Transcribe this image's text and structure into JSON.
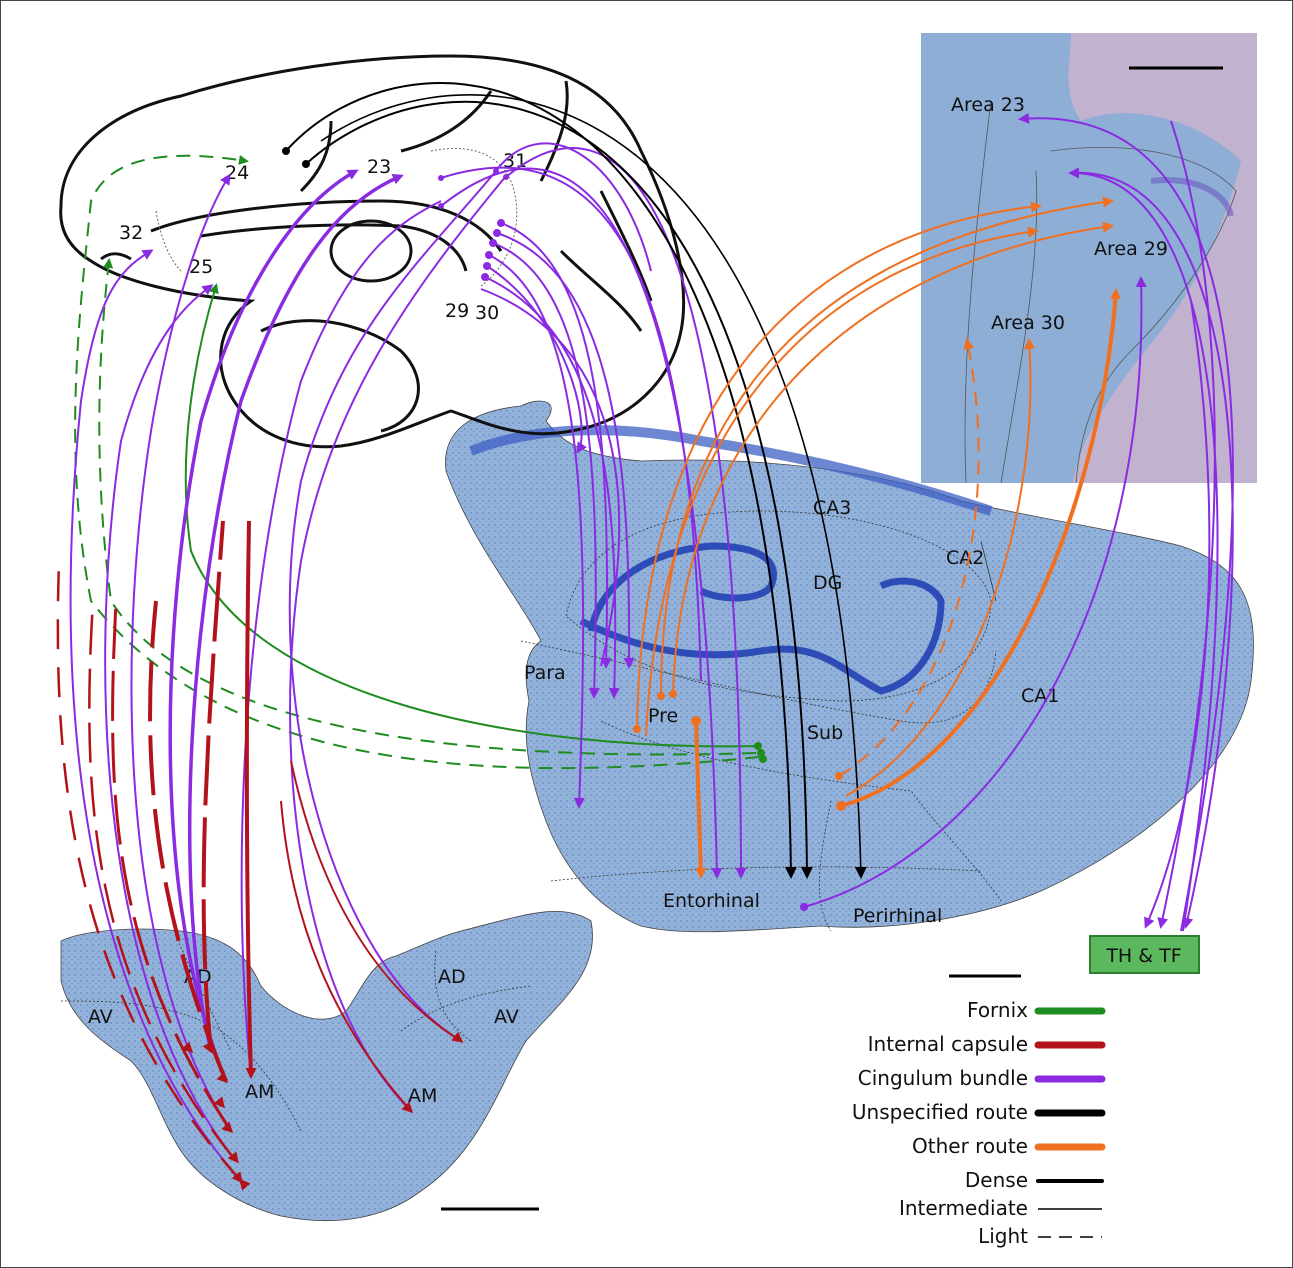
{
  "cortex_labels": {
    "a24": "24",
    "a23": "23",
    "a31": "31",
    "a32": "32",
    "a25": "25",
    "a29": "29",
    "a30": "30"
  },
  "retro_labels": {
    "area23": "Area 23",
    "area29": "Area 29",
    "area30": "Area 30"
  },
  "hippocampus_labels": {
    "ca3": "CA3",
    "ca2": "CA2",
    "ca1": "CA1",
    "dg": "DG",
    "para": "Para",
    "pre": "Pre",
    "sub": "Sub",
    "entorhinal": "Entorhinal",
    "perirhinal": "Perirhinal"
  },
  "thalamus_labels": {
    "ad_left": "AD",
    "av_left": "AV",
    "am_left": "AM",
    "ad_right": "AD",
    "av_right": "AV",
    "am_right": "AM"
  },
  "target_box": "TH & TF",
  "legend": {
    "routes": [
      {
        "label": "Fornix",
        "color": "#1e8c1e"
      },
      {
        "label": "Internal capsule",
        "color": "#b3121b"
      },
      {
        "label": "Cingulum bundle",
        "color": "#8a2be2"
      },
      {
        "label": "Unspecified route",
        "color": "#000000"
      },
      {
        "label": "Other route",
        "color": "#f07020"
      }
    ],
    "density": [
      {
        "label": "Dense",
        "style": "thick"
      },
      {
        "label": "Intermediate",
        "style": "thin"
      },
      {
        "label": "Light",
        "style": "dashed"
      }
    ]
  },
  "colors": {
    "fornix": "#1e8c1e",
    "internal_capsule": "#b3121b",
    "cingulum": "#8a2be2",
    "unspecified": "#000000",
    "other": "#f07020",
    "tissue": "#8fb0d8",
    "tissue_dark": "#3d5fc4",
    "tissue_purple": "#b8a3c8",
    "box_fill": "#5cb85c"
  }
}
